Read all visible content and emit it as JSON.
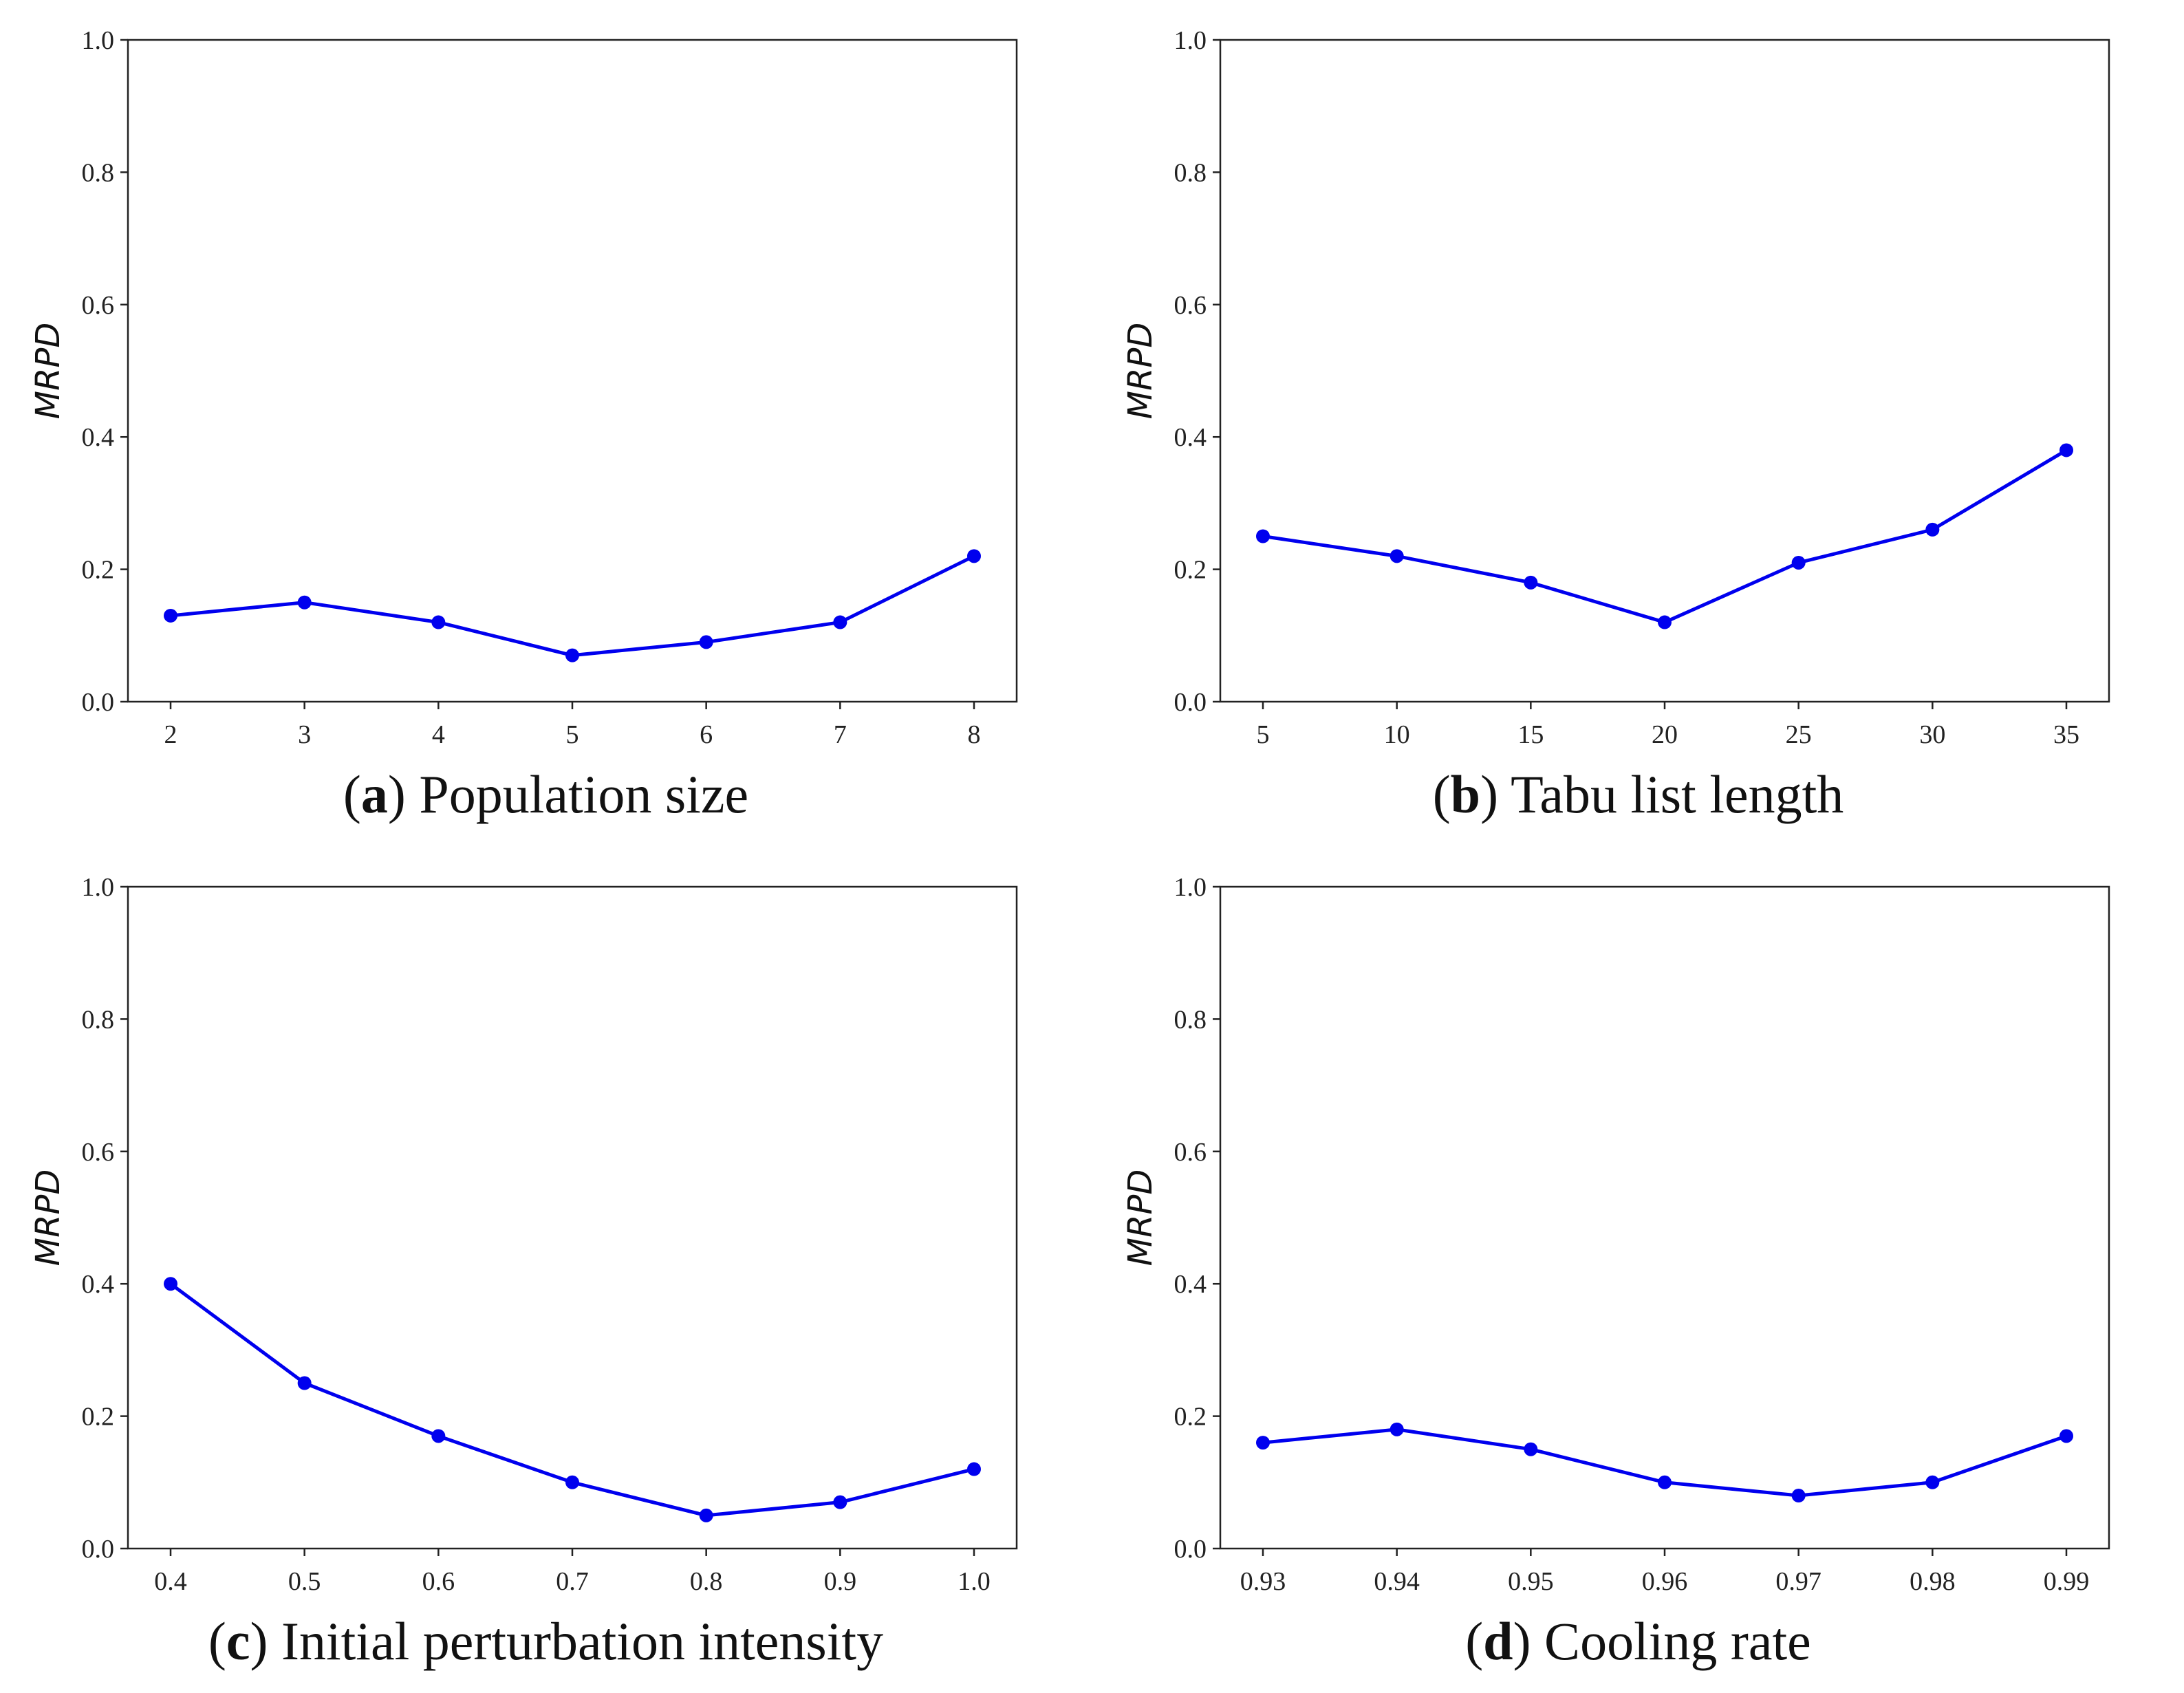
{
  "chart_data": [
    {
      "type": "line",
      "id": "a",
      "caption_letter": "a",
      "caption_text": "Population size",
      "ylabel": "MRPD",
      "ylim": [
        0.0,
        1.0
      ],
      "yticks": [
        "0.0",
        "0.2",
        "0.4",
        "0.6",
        "0.8",
        "1.0"
      ],
      "categories": [
        "2",
        "3",
        "4",
        "5",
        "6",
        "7",
        "8"
      ],
      "values": [
        0.13,
        0.15,
        0.12,
        0.07,
        0.09,
        0.12,
        0.22
      ],
      "color": "#0000ee"
    },
    {
      "type": "line",
      "id": "b",
      "caption_letter": "b",
      "caption_text": "Tabu list length",
      "ylabel": "MRPD",
      "ylim": [
        0.0,
        1.0
      ],
      "yticks": [
        "0.0",
        "0.2",
        "0.4",
        "0.6",
        "0.8",
        "1.0"
      ],
      "categories": [
        "5",
        "10",
        "15",
        "20",
        "25",
        "30",
        "35"
      ],
      "values": [
        0.25,
        0.22,
        0.18,
        0.12,
        0.21,
        0.26,
        0.38
      ],
      "color": "#0000ee"
    },
    {
      "type": "line",
      "id": "c",
      "caption_letter": "c",
      "caption_text": "Initial perturbation intensity",
      "ylabel": "MRPD",
      "ylim": [
        0.0,
        1.0
      ],
      "yticks": [
        "0.0",
        "0.2",
        "0.4",
        "0.6",
        "0.8",
        "1.0"
      ],
      "categories": [
        "0.4",
        "0.5",
        "0.6",
        "0.7",
        "0.8",
        "0.9",
        "1.0"
      ],
      "values": [
        0.4,
        0.25,
        0.17,
        0.1,
        0.05,
        0.07,
        0.12
      ],
      "color": "#0000ee"
    },
    {
      "type": "line",
      "id": "d",
      "caption_letter": "d",
      "caption_text": "Cooling rate",
      "ylabel": "MRPD",
      "ylim": [
        0.0,
        1.0
      ],
      "yticks": [
        "0.0",
        "0.2",
        "0.4",
        "0.6",
        "0.8",
        "1.0"
      ],
      "categories": [
        "0.93",
        "0.94",
        "0.95",
        "0.96",
        "0.97",
        "0.98",
        "0.99"
      ],
      "values": [
        0.16,
        0.18,
        0.15,
        0.1,
        0.08,
        0.1,
        0.17
      ],
      "color": "#0000ee"
    }
  ]
}
